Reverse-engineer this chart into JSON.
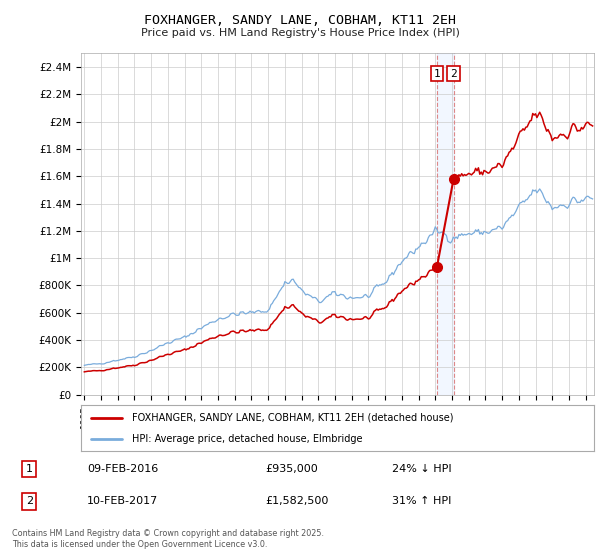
{
  "title": "FOXHANGER, SANDY LANE, COBHAM, KT11 2EH",
  "subtitle": "Price paid vs. HM Land Registry's House Price Index (HPI)",
  "sale1_date": "09-FEB-2016",
  "sale1_price": 935000,
  "sale1_year": 2016.1,
  "sale2_date": "10-FEB-2017",
  "sale2_price": 1582500,
  "sale2_year": 2017.1,
  "legend1": "FOXHANGER, SANDY LANE, COBHAM, KT11 2EH (detached house)",
  "legend2": "HPI: Average price, detached house, Elmbridge",
  "footer": "Contains HM Land Registry data © Crown copyright and database right 2025.\nThis data is licensed under the Open Government Licence v3.0.",
  "line1_color": "#cc0000",
  "line2_color": "#7aacdc",
  "background_color": "#ffffff",
  "grid_color": "#cccccc",
  "ylim": [
    0,
    2500000
  ],
  "yticks": [
    0,
    200000,
    400000,
    600000,
    800000,
    1000000,
    1200000,
    1400000,
    1600000,
    1800000,
    2000000,
    2200000,
    2400000
  ],
  "xlim_start": 1994.8,
  "xlim_end": 2025.5,
  "sale1_hpi": "24% ↓ HPI",
  "sale2_hpi": "31% ↑ HPI"
}
